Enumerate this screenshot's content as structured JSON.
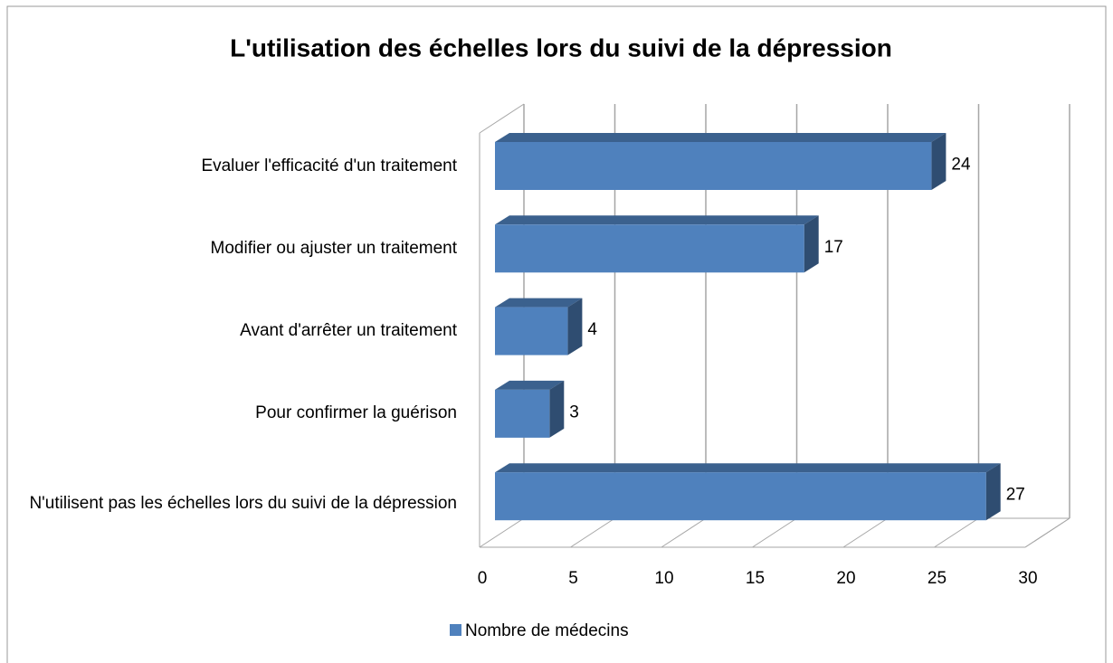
{
  "chart_data": {
    "type": "bar3d_horizontal",
    "title": "L'utilisation des échelles lors du suivi de la dépression",
    "categories": [
      "Evaluer l'efficacité d'un traitement",
      "Modifier ou ajuster un traitement",
      "Avant d'arrêter un traitement",
      "Pour confirmer la guérison",
      "N'utilisent pas les échelles lors du suivi de la dépression"
    ],
    "series": [
      {
        "name": "Nombre de médecins",
        "color": "#4f81bd",
        "values": [
          24,
          17,
          4,
          3,
          27
        ]
      }
    ],
    "xlim": [
      0,
      30
    ],
    "xticks": [
      0,
      5,
      10,
      15,
      20,
      25,
      30
    ],
    "grid": true,
    "legend": "bottom"
  }
}
